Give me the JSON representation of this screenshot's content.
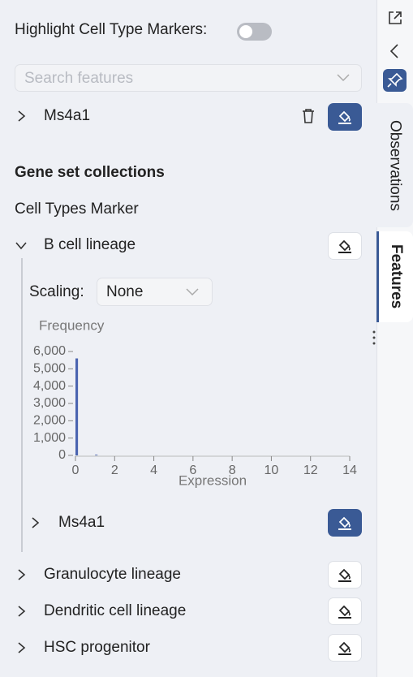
{
  "header": {
    "highlight_label": "Highlight Cell Type Markers:"
  },
  "search": {
    "placeholder": "Search features"
  },
  "selected_features": [
    {
      "label": "Ms4a1"
    }
  ],
  "gene_sets": {
    "title": "Gene set collections",
    "collection": "Cell Types Marker",
    "groups": [
      {
        "label": "B cell lineage"
      },
      {
        "label": "Granulocyte lineage"
      },
      {
        "label": "Dendritic cell lineage"
      },
      {
        "label": "HSC progenitor"
      }
    ]
  },
  "scaling": {
    "label": "Scaling:",
    "value": "None"
  },
  "chart_data": {
    "type": "histogram",
    "ylabel": "Frequency",
    "xlabel": "Expression",
    "bins": [
      0,
      0.15,
      1.0,
      1.15,
      14
    ],
    "values": [
      5600,
      0,
      40,
      0
    ],
    "color": "#4a64b0",
    "xlim": [
      0,
      14
    ],
    "xticks": [
      0,
      2,
      4,
      6,
      8,
      10,
      12,
      14
    ],
    "ylim": [
      0,
      6000
    ],
    "yticks": [
      0,
      {
        "value": 1000,
        "label": "1,000"
      },
      {
        "value": 2000,
        "label": "2,000"
      },
      {
        "value": 3000,
        "label": "3,000"
      },
      {
        "value": 4000,
        "label": "4,000"
      },
      {
        "value": 5000,
        "label": "5,000"
      },
      {
        "value": 6000,
        "label": "6,000"
      }
    ]
  },
  "group_features": [
    {
      "label": "Ms4a1"
    }
  ],
  "sidebar": {
    "tabs": [
      {
        "label": "Observations"
      },
      {
        "label": "Features"
      }
    ]
  }
}
